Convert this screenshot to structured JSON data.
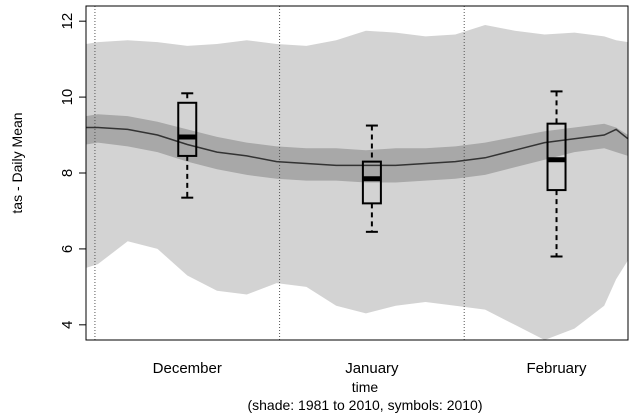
{
  "chart_data": {
    "type": "area",
    "title": "",
    "xlabel": "time",
    "subtitle": "(shade: 1981 to 2010, symbols: 2010)",
    "ylabel": "tas - Daily Mean",
    "ylim": [
      3.6,
      12.4
    ],
    "y_ticks": [
      4,
      6,
      8,
      10,
      12
    ],
    "x_range": [
      -17,
      74
    ],
    "month_labels": [
      {
        "label": "December",
        "x": 0
      },
      {
        "label": "January",
        "x": 31
      },
      {
        "label": "February",
        "x": 62
      }
    ],
    "month_boundaries": [
      -15.5,
      15.5,
      46.5
    ],
    "grid": "vertical dotted lines at month boundaries",
    "x": [
      -17,
      -15,
      -10,
      -5,
      0,
      5,
      10,
      15,
      20,
      25,
      30,
      35,
      40,
      45,
      50,
      55,
      60,
      65,
      70,
      72,
      74
    ],
    "series": [
      {
        "role": "outer_band_upper",
        "color": "#d3d3d3",
        "values": [
          11.4,
          11.45,
          11.5,
          11.45,
          11.35,
          11.4,
          11.5,
          11.4,
          11.35,
          11.5,
          11.75,
          11.7,
          11.6,
          11.65,
          11.9,
          11.75,
          11.65,
          11.7,
          11.6,
          11.5,
          11.45
        ]
      },
      {
        "role": "outer_band_lower",
        "color": "#d3d3d3",
        "values": [
          5.5,
          5.6,
          6.2,
          6.0,
          5.3,
          4.9,
          4.8,
          5.1,
          5.0,
          4.5,
          4.3,
          4.5,
          4.6,
          4.5,
          4.4,
          4.0,
          3.6,
          3.9,
          4.5,
          5.2,
          5.7
        ]
      },
      {
        "role": "inner_band_upper",
        "color": "#a8a8a8",
        "values": [
          9.5,
          9.55,
          9.5,
          9.35,
          9.15,
          8.95,
          8.8,
          8.7,
          8.65,
          8.65,
          8.6,
          8.65,
          8.65,
          8.7,
          8.8,
          8.95,
          9.1,
          9.2,
          9.3,
          9.2,
          9.0
        ]
      },
      {
        "role": "inner_band_lower",
        "color": "#a8a8a8",
        "values": [
          8.75,
          8.8,
          8.7,
          8.55,
          8.3,
          8.1,
          7.95,
          7.85,
          7.8,
          7.8,
          7.75,
          7.75,
          7.8,
          7.85,
          7.95,
          8.15,
          8.35,
          8.55,
          8.65,
          8.55,
          8.45
        ]
      },
      {
        "role": "climatology_mean",
        "color": "#333333",
        "values": [
          9.2,
          9.2,
          9.15,
          9.0,
          8.75,
          8.55,
          8.45,
          8.3,
          8.25,
          8.2,
          8.2,
          8.2,
          8.25,
          8.3,
          8.4,
          8.6,
          8.8,
          8.9,
          9.0,
          9.15,
          8.9
        ]
      }
    ],
    "boxplots": [
      {
        "label": "December",
        "x": 0,
        "min": 7.35,
        "q1": 8.45,
        "median": 8.95,
        "q3": 9.85,
        "max": 10.1
      },
      {
        "label": "January",
        "x": 31,
        "min": 6.45,
        "q1": 7.2,
        "median": 7.85,
        "q3": 8.3,
        "max": 9.25
      },
      {
        "label": "February",
        "x": 62,
        "min": 5.8,
        "q1": 7.55,
        "median": 8.35,
        "q3": 9.3,
        "max": 10.15
      }
    ]
  }
}
